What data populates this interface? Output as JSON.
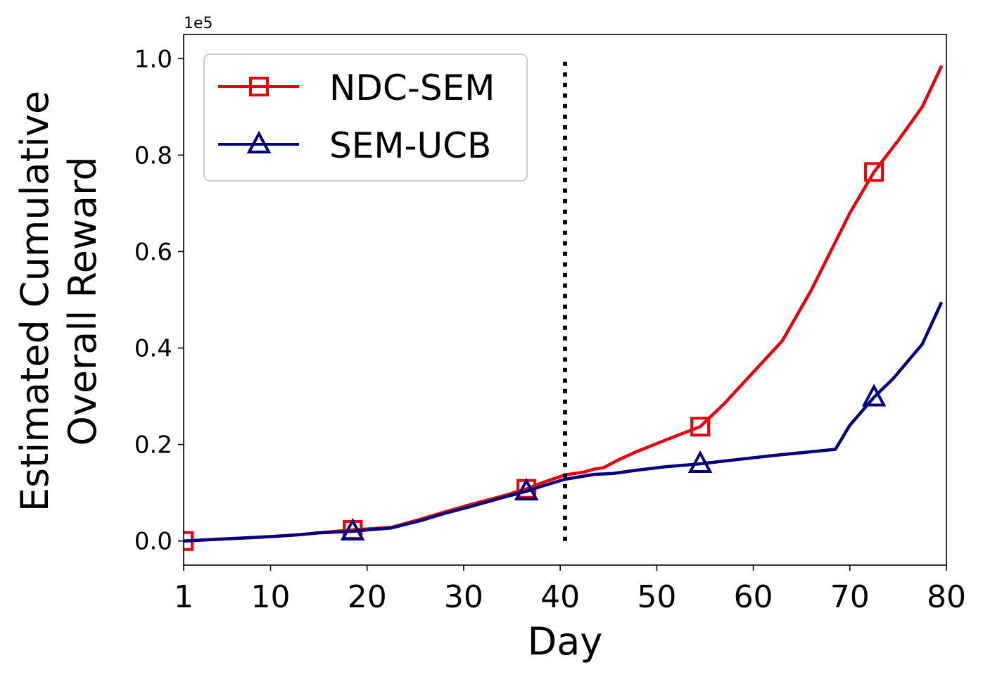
{
  "chart_data": {
    "type": "line",
    "xlabel": "Day",
    "ylabel_lines": [
      "Estimated Cumulative",
      "Overall Reward"
    ],
    "y_multiplier_label": "1e5",
    "xlim": [
      1,
      80
    ],
    "ylim": [
      -0.05,
      1.05
    ],
    "x_ticks": [
      {
        "value": 1,
        "label": "1"
      },
      {
        "value": 10,
        "label": "10"
      },
      {
        "value": 20,
        "label": "20"
      },
      {
        "value": 30,
        "label": "30"
      },
      {
        "value": 40,
        "label": "40"
      },
      {
        "value": 50,
        "label": "50"
      },
      {
        "value": 60,
        "label": "60"
      },
      {
        "value": 70,
        "label": "70"
      },
      {
        "value": 80,
        "label": "80"
      }
    ],
    "y_ticks": [
      {
        "value": 0.0,
        "label": "0.0"
      },
      {
        "value": 0.2,
        "label": "0.2"
      },
      {
        "value": 0.4,
        "label": "0.4"
      },
      {
        "value": 0.6,
        "label": "0.6"
      },
      {
        "value": 0.8,
        "label": "0.8"
      },
      {
        "value": 1.0,
        "label": "1.0"
      }
    ],
    "vline": {
      "x": 40.5,
      "y_range": [
        0.0,
        1.0
      ],
      "style": "dotted",
      "color": "#000000"
    },
    "legend": {
      "position": "top-left"
    },
    "grid": false,
    "series": [
      {
        "name": "NDC-SEM",
        "color": "#e8000b",
        "marker": "square",
        "x": [
          1,
          4,
          7,
          10,
          13,
          15,
          18.5,
          20,
          22.5,
          25.5,
          28,
          31,
          34,
          36.5,
          38,
          40.5,
          42.5,
          43.5,
          44.5,
          46,
          48,
          51,
          54.5,
          57,
          60,
          63,
          66,
          68,
          70,
          72.5,
          75,
          77.5,
          79.5
        ],
        "y": [
          0.0,
          0.003,
          0.006,
          0.009,
          0.013,
          0.017,
          0.023,
          0.025,
          0.028,
          0.045,
          0.06,
          0.077,
          0.093,
          0.108,
          0.12,
          0.137,
          0.143,
          0.149,
          0.152,
          0.168,
          0.186,
          0.21,
          0.237,
          0.285,
          0.35,
          0.415,
          0.52,
          0.6,
          0.68,
          0.765,
          0.83,
          0.9,
          0.985
        ],
        "marker_x": [
          1,
          18.5,
          36.5,
          54.5,
          72.5
        ],
        "marker_y": [
          0.0,
          0.023,
          0.108,
          0.237,
          0.765
        ]
      },
      {
        "name": "SEM-UCB",
        "color": "#00007f",
        "marker": "triangle",
        "x": [
          1,
          4,
          7,
          10,
          13,
          15,
          18.5,
          20,
          22.5,
          25.5,
          28,
          31,
          34,
          36.5,
          38,
          40.5,
          43.5,
          45.5,
          48,
          51,
          54.5,
          58,
          62,
          66,
          68.5,
          70,
          72.5,
          74.5,
          77.5,
          79.5
        ],
        "y": [
          0.0,
          0.003,
          0.006,
          0.009,
          0.013,
          0.017,
          0.02,
          0.023,
          0.027,
          0.042,
          0.057,
          0.073,
          0.09,
          0.103,
          0.113,
          0.128,
          0.138,
          0.14,
          0.147,
          0.154,
          0.16,
          0.168,
          0.177,
          0.185,
          0.19,
          0.24,
          0.298,
          0.337,
          0.408,
          0.495
        ],
        "marker_x": [
          18.5,
          36.5,
          54.5,
          72.5
        ],
        "marker_y": [
          0.02,
          0.103,
          0.16,
          0.298
        ]
      }
    ]
  }
}
